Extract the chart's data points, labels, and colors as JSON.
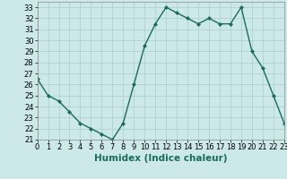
{
  "x": [
    0,
    1,
    2,
    3,
    4,
    5,
    6,
    7,
    8,
    9,
    10,
    11,
    12,
    13,
    14,
    15,
    16,
    17,
    18,
    19,
    20,
    21,
    22,
    23
  ],
  "y": [
    26.5,
    25.0,
    24.5,
    23.5,
    22.5,
    22.0,
    21.5,
    21.0,
    22.5,
    26.0,
    29.5,
    31.5,
    33.0,
    32.5,
    32.0,
    31.5,
    32.0,
    31.5,
    31.5,
    33.0,
    29.0,
    27.5,
    25.0,
    22.5
  ],
  "line_color": "#1a6b5a",
  "marker": "D",
  "marker_size": 2.0,
  "bg_color": "#cce8e8",
  "grid_color": "#aacece",
  "xlabel": "Humidex (Indice chaleur)",
  "ylim": [
    21,
    33.5
  ],
  "xlim": [
    0,
    23
  ],
  "yticks": [
    21,
    22,
    23,
    24,
    25,
    26,
    27,
    28,
    29,
    30,
    31,
    32,
    33
  ],
  "xtick_labels": [
    "0",
    "1",
    "2",
    "3",
    "4",
    "5",
    "6",
    "7",
    "8",
    "9",
    "10",
    "11",
    "12",
    "13",
    "14",
    "15",
    "16",
    "17",
    "18",
    "19",
    "20",
    "21",
    "22",
    "23"
  ],
  "xlabel_fontsize": 7.5,
  "tick_fontsize": 6.0,
  "line_width": 1.0
}
